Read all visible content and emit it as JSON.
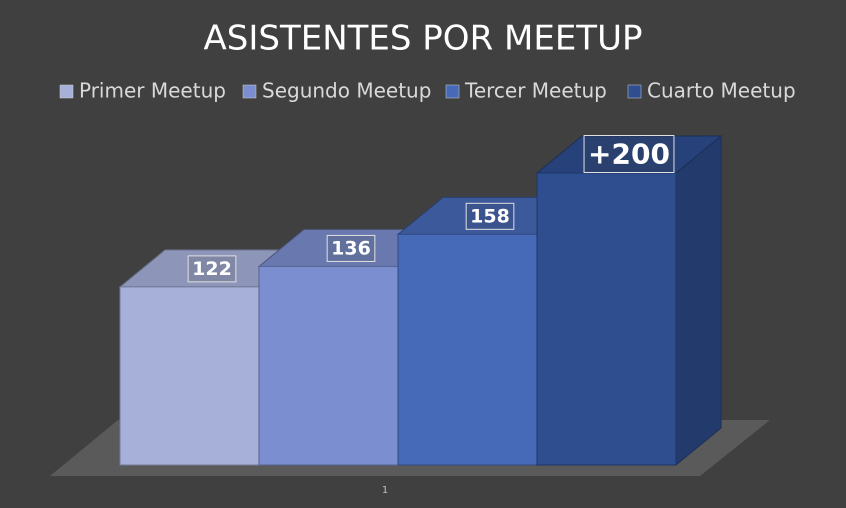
{
  "chart_data": {
    "type": "bar3d",
    "title": "ASISTENTES POR MEETUP",
    "categories": [
      "1"
    ],
    "series": [
      {
        "name": "Primer Meetup",
        "color": "#a6b0d8",
        "values": [
          122
        ]
      },
      {
        "name": "Segundo Meetup",
        "color": "#7b8ecf",
        "values": [
          136
        ]
      },
      {
        "name": "Tercer Meetup",
        "color": "#4669b8",
        "values": [
          158
        ]
      },
      {
        "name": "Cuarto Meetup",
        "color": "#2e4e90",
        "values": [
          200
        ],
        "value_labels": [
          "+200"
        ]
      }
    ],
    "legend": "top"
  }
}
